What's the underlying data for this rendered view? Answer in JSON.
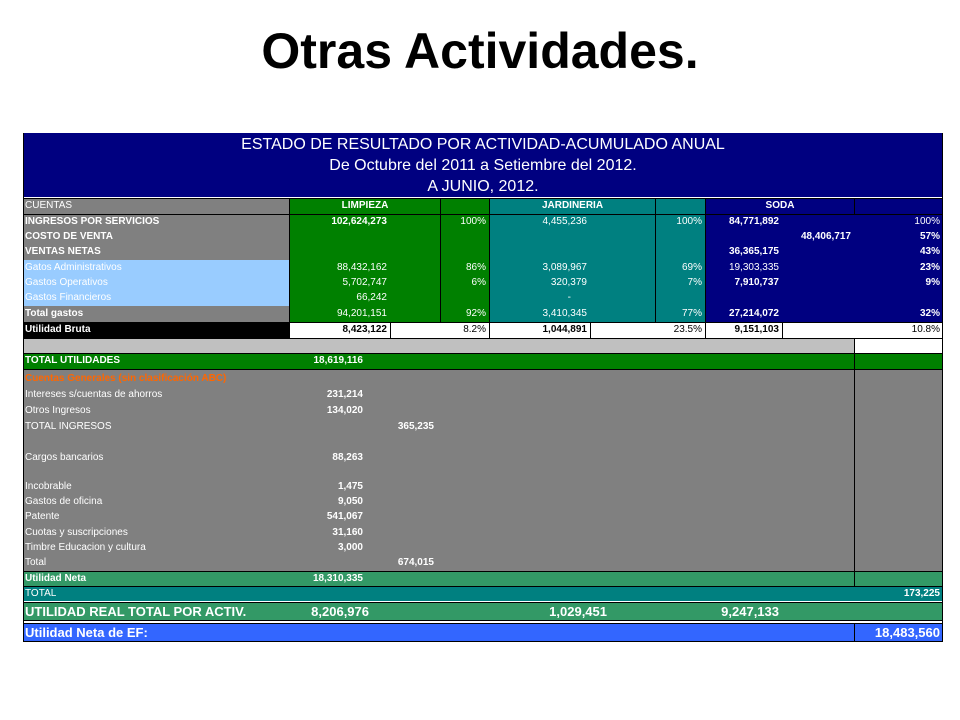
{
  "slide": {
    "title": "Otras Actividades."
  },
  "header": {
    "line1": "ESTADO DE RESULTADO POR ACTIVIDAD-ACUMULADO ANUAL",
    "line2": "De Octubre del 2011 a Setiembre del 2012.",
    "line3": "A JUNIO, 2012."
  },
  "columns": {
    "cuentas": "CUENTAS",
    "limpieza": "LIMPIEZA",
    "jardineria": "JARDINERIA",
    "soda": "SODA"
  },
  "rows": {
    "ingresos": {
      "label": "INGRESOS POR SERVICIOS",
      "limpieza": "102,624,273",
      "limpieza_pct": "100%",
      "jardineria": "4,455,236",
      "jardineria_pct": "100%",
      "soda": "84,771,892",
      "soda_pct": "100%"
    },
    "costo": {
      "label": "COSTO DE VENTA",
      "soda2": "48,406,717",
      "soda_pct": "57%"
    },
    "ventas": {
      "label": "VENTAS NETAS",
      "soda": "36,365,175",
      "soda_pct": "43%"
    },
    "admin": {
      "label": "Gatos Administrativos",
      "limpieza": "88,432,162",
      "limpieza_pct": "86%",
      "jardineria": "3,089,967",
      "jardineria_pct": "69%",
      "soda": "19,303,335",
      "soda_pct": "23%"
    },
    "operativos": {
      "label": "Gastos Operativos",
      "limpieza": "5,702,747",
      "limpieza_pct": "6%",
      "jardineria": "320,379",
      "jardineria_pct": "7%",
      "soda": "7,910,737",
      "soda_pct": "9%"
    },
    "financieros": {
      "label": "Gastos Financieros",
      "limpieza": "66,242",
      "jardineria": "-"
    },
    "total_gastos": {
      "label": "Total gastos",
      "limpieza": "94,201,151",
      "limpieza_pct": "92%",
      "jardineria": "3,410,345",
      "jardineria_pct": "77%",
      "soda": "27,214,072",
      "soda_pct": "32%"
    },
    "utilidad_bruta": {
      "label": "Utilidad Bruta",
      "limpieza": "8,423,122",
      "limpieza_pct": "8.2%",
      "jardineria": "1,044,891",
      "jardineria_pct": "23.5%",
      "soda": "9,151,103",
      "soda_pct": "10.8%"
    },
    "total_utilidades": {
      "label": "TOTAL UTILIDADES",
      "value": "18,619,116"
    },
    "cuentas_generales": {
      "label": "Cuentas Generales (sin clasificación ABC)"
    },
    "intereses": {
      "label": "Intereses s/cuentas de ahorros",
      "value": "231,214"
    },
    "otros_ingresos": {
      "label": "Otros Ingresos",
      "value": "134,020"
    },
    "total_ingresos": {
      "label": "TOTAL INGRESOS",
      "value": "365,235"
    },
    "cargos": {
      "label": "Cargos bancarios",
      "value": "88,263"
    },
    "incobrable": {
      "label": "Incobrable",
      "value": "1,475"
    },
    "oficina": {
      "label": "Gastos de oficina",
      "value": "9,050"
    },
    "patente": {
      "label": "Patente",
      "value": "541,067"
    },
    "cuotas": {
      "label": "Cuotas y suscripciones",
      "value": "31,160"
    },
    "timbre": {
      "label": "Timbre Educacion y cultura",
      "value": "3,000"
    },
    "total": {
      "label": "Total",
      "value": "674,015"
    },
    "utilidad_neta": {
      "label": "Utilidad Neta",
      "value": "18,310,335"
    },
    "total2": {
      "label": "TOTAL",
      "value": "173,225"
    },
    "real": {
      "label": "UTILIDAD REAL TOTAL POR ACTIV.",
      "limpieza": "8,206,976",
      "jardineria": "1,029,451",
      "soda": "9,247,133"
    },
    "neta_ef": {
      "label": "Utilidad Neta de EF:",
      "value": "18,483,560"
    }
  }
}
